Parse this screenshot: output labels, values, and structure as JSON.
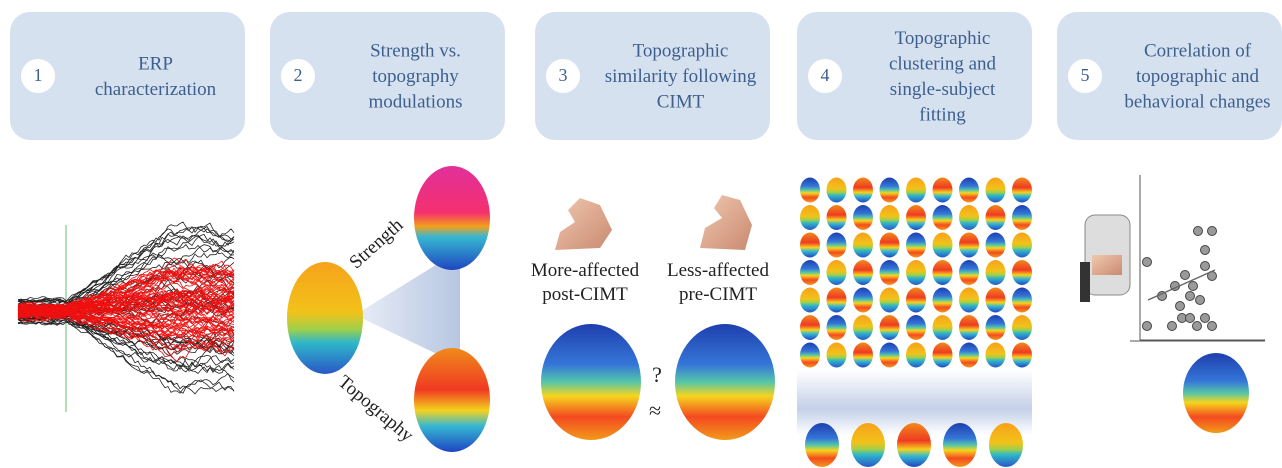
{
  "steps": [
    {
      "number": "1",
      "lines": [
        "ERP",
        "characterization"
      ]
    },
    {
      "number": "2",
      "lines": [
        "Strength vs.",
        "topography",
        "modulations"
      ]
    },
    {
      "number": "3",
      "lines": [
        "Topographic",
        "similarity following",
        "CIMT"
      ]
    },
    {
      "number": "4",
      "lines": [
        "Topographic",
        "clustering and",
        "single-subject",
        "fitting"
      ]
    },
    {
      "number": "5",
      "lines": [
        "Correlation of",
        "topographic and",
        "behavioral changes"
      ]
    }
  ],
  "panel2": {
    "strength": "Strength",
    "topography": "Topography"
  },
  "panel3": {
    "left": [
      "More-affected",
      "post-CIMT"
    ],
    "right": [
      "Less-affected",
      "pre-CIMT"
    ],
    "question": "?",
    "approx": "≈"
  }
}
